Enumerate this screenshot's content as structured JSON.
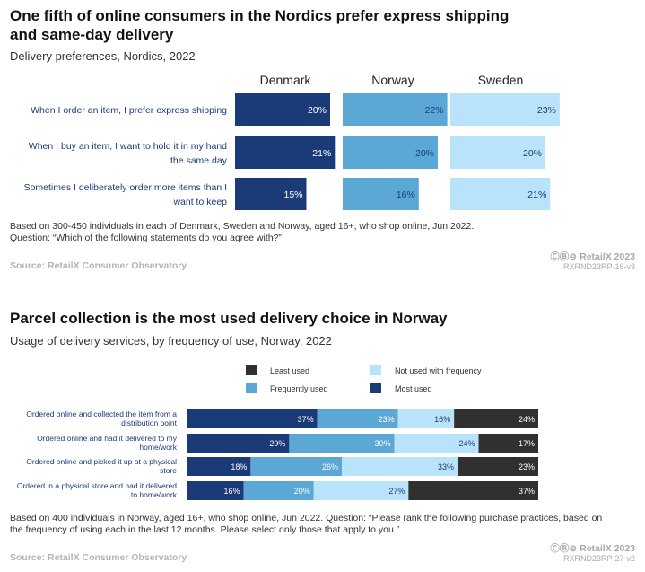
{
  "chart_data": [
    {
      "type": "bar",
      "title": "One fifth of online consumers in the Nordics prefer express shipping and same-day delivery",
      "title_lines": [
        "One fifth of online consumers in the Nordics prefer express shipping",
        "and same-day delivery"
      ],
      "subtitle": "Delivery preferences, Nordics, 2022",
      "categories": [
        "When I order an item, I prefer express shipping",
        "When I buy an item, I want to hold it in my hand the same day",
        "Sometimes I deliberately order more items than I want to keep"
      ],
      "category_lines": [
        [
          "When I order an item, I prefer express shipping"
        ],
        [
          "When I buy an item, I want to hold it in my hand",
          "the same day"
        ],
        [
          "Sometimes I deliberately order more items than I",
          "want to keep"
        ]
      ],
      "series": [
        {
          "name": "Denmark",
          "values": [
            20,
            21,
            15
          ],
          "color": "#1b3b78"
        },
        {
          "name": "Norway",
          "values": [
            22,
            20,
            16
          ],
          "color": "#5ba8d6"
        },
        {
          "name": "Sweden",
          "values": [
            23,
            20,
            21
          ],
          "color": "#b9e3fb"
        }
      ],
      "value_suffix": "%",
      "note": "Based on 300-450 individuals in each of Denmark, Sweden and Norway, aged 16+, who shop online, Jun 2022. Question: “Which of the following statements do you agree with?”",
      "note_lines": [
        "Based on 300-450 individuals in each of Denmark, Sweden and Norway, aged 16+, who shop online, Jun 2022.",
        "Question: “Which of the following statements do you agree with?”"
      ],
      "source": "Source: RetailX Consumer Observatory",
      "copyright": "ⒸⒷ⊜ RetailX 2023",
      "code": "RXRND23RP-16-v3"
    },
    {
      "type": "bar",
      "stacked": true,
      "orientation": "horizontal",
      "title": "Parcel collection is the most used delivery choice in Norway",
      "subtitle": "Usage of delivery services, by frequency of use, Norway, 2022",
      "categories": [
        "Ordered online and collected the item from a distribution point",
        "Ordered online and had it delivered to my home/work",
        "Ordered online and picked it up at a physical store",
        "Ordered in a physical store and had it delivered to home/work"
      ],
      "category_lines": [
        [
          "Ordered online and collected the item from a",
          "distribution point"
        ],
        [
          "Ordered online and had it delivered to my",
          "home/work"
        ],
        [
          "Ordered online and picked it up at a physical",
          "store"
        ],
        [
          "Ordered in a physical store and had it delivered",
          "to home/work"
        ]
      ],
      "series": [
        {
          "name": "Most used",
          "values": [
            37,
            29,
            18,
            16
          ],
          "color": "#1b3b78"
        },
        {
          "name": "Frequently used",
          "values": [
            23,
            30,
            26,
            20
          ],
          "color": "#5ba8d6"
        },
        {
          "name": "Not used with frequency",
          "values": [
            16,
            24,
            33,
            27
          ],
          "color": "#b9e3fb"
        },
        {
          "name": "Least used",
          "values": [
            24,
            17,
            23,
            37
          ],
          "color": "#303030"
        }
      ],
      "legend_order": [
        "Least used",
        "Not used with frequency",
        "Frequently used",
        "Most used"
      ],
      "value_suffix": "%",
      "note": "Based on 400 individuals in Norway, aged 16+, who shop online, Jun 2022. Question: “Please rank the following purchase practices, based on the frequency of using each in the last 12 months. Please select only those that apply to you.”",
      "note_lines": [
        "Based on 400 individuals in Norway, aged 16+, who shop online, Jun 2022. Question: “Please rank the following purchase practices, based on",
        "the frequency of using each in the last 12 months. Please select only those that apply to you.”"
      ],
      "source": "Source: RetailX Consumer Observatory",
      "copyright": "ⒸⒷ⊜ RetailX 2023",
      "code": "RXRND23RP-27-v2"
    }
  ]
}
